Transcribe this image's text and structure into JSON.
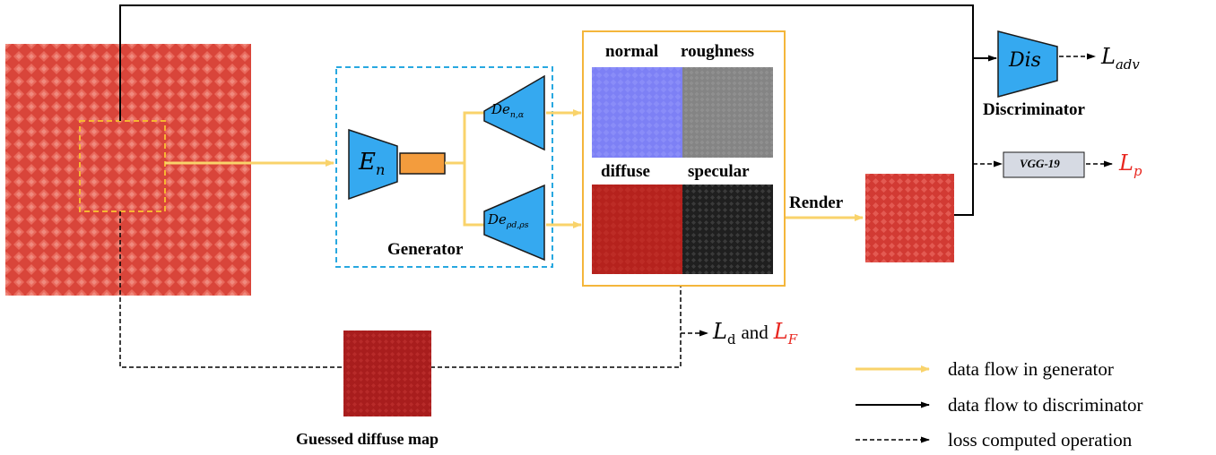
{
  "diagram": {
    "encoder_symbol": "E",
    "encoder_sub": "n",
    "decoder1_symbol": "De",
    "decoder1_sub": "n,α",
    "decoder2_symbol": "De",
    "decoder2_sub": "ρd,ρs",
    "generator_label": "Generator",
    "maps": {
      "normal": "normal",
      "roughness": "roughness",
      "diffuse": "diffuse",
      "specular": "specular"
    },
    "render_label": "Render",
    "discriminator_symbol": "Dis",
    "discriminator_label": "Discriminator",
    "adv_loss": "L",
    "adv_loss_sub": "adv",
    "vgg_label": "VGG-19",
    "perceptual_loss": "L",
    "perceptual_loss_sub": "p",
    "d_loss": "L",
    "d_loss_sub": "d",
    "and_word": "and",
    "f_loss": "L",
    "f_loss_sub": "F",
    "guessed_label": "Guessed diffuse map",
    "legend": [
      {
        "label": "data flow in generator",
        "style": "yellow-solid"
      },
      {
        "label": "data flow to discriminator",
        "style": "black-solid"
      },
      {
        "label": "loss computed operation",
        "style": "black-dashed"
      }
    ]
  },
  "colors": {
    "flow_yellow": "#f9d36b",
    "block_blue": "#35a9f0",
    "dashed_blue": "#28a8e0",
    "latent_orange": "#f39c3d",
    "frame_yellow": "#f4b63b",
    "input_red": "#d9453a",
    "loss_red": "#e8261f",
    "vgg_fill": "#d6dae3"
  }
}
